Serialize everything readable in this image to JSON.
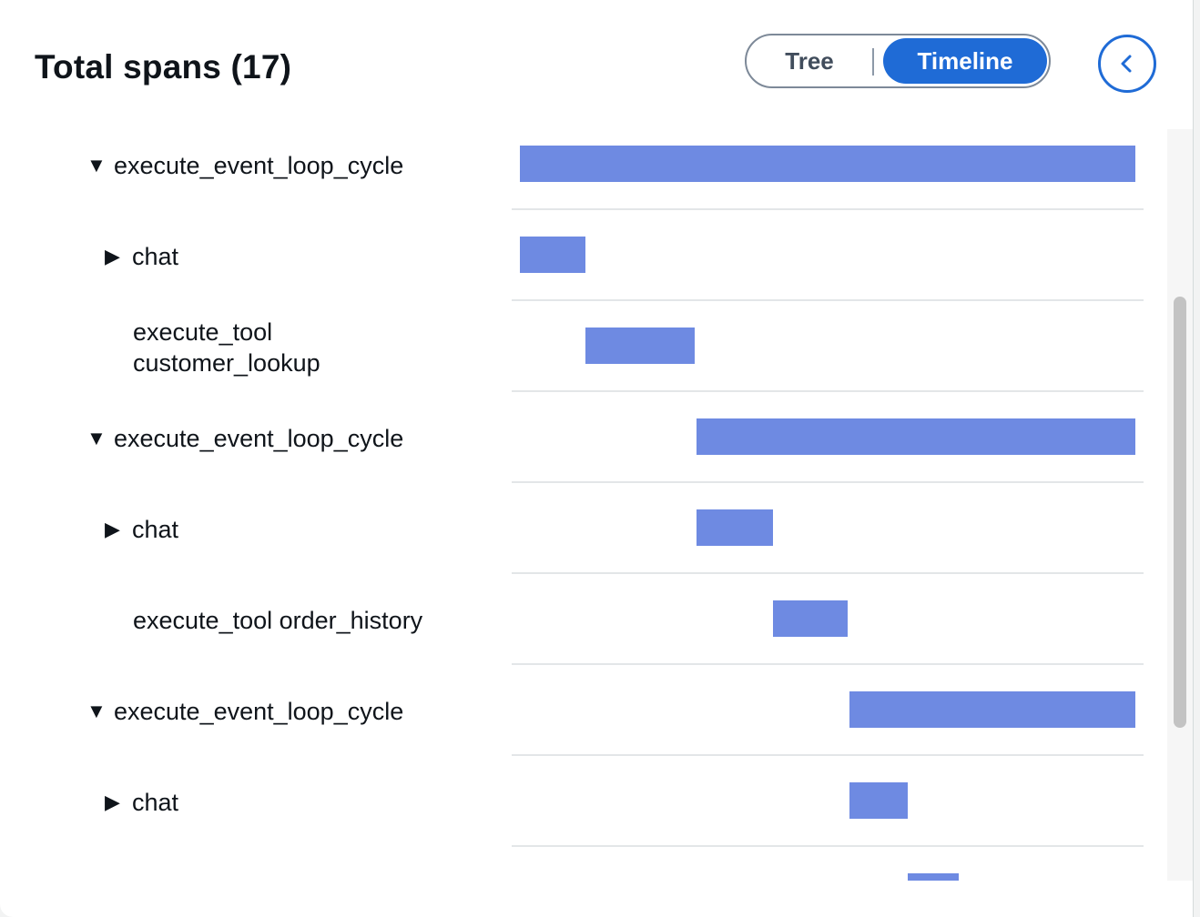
{
  "header": {
    "title": "Total spans (17)",
    "view_toggle": {
      "tree_label": "Tree",
      "timeline_label": "Timeline",
      "selected": "Timeline"
    },
    "collapse_button_icon": "chevron-left-icon"
  },
  "colors": {
    "accent": "#1f6bd6",
    "span_bar": "#6e8ae2"
  },
  "timeline": {
    "spans": [
      {
        "label": "execute_event_loop_cycle",
        "expander": "expanded",
        "depth": 0,
        "start": 0.0,
        "end": 1.0
      },
      {
        "label": "chat",
        "expander": "collapsed",
        "depth": 1,
        "start": 0.0,
        "end": 0.1065
      },
      {
        "label_lines": [
          "execute_tool",
          "customer_lookup"
        ],
        "expander": "none",
        "depth": 1,
        "start": 0.1065,
        "end": 0.284
      },
      {
        "label": "execute_event_loop_cycle",
        "expander": "expanded",
        "depth": 0,
        "start": 0.287,
        "end": 1.0
      },
      {
        "label": "chat",
        "expander": "collapsed",
        "depth": 1,
        "start": 0.287,
        "end": 0.4112
      },
      {
        "label": "execute_tool order_history",
        "expander": "none",
        "depth": 1,
        "start": 0.4112,
        "end": 0.5325
      },
      {
        "label": "execute_event_loop_cycle",
        "expander": "expanded",
        "depth": 0,
        "start": 0.5355,
        "end": 1.0
      },
      {
        "label": "chat",
        "expander": "collapsed",
        "depth": 1,
        "start": 0.5355,
        "end": 0.6302
      },
      {
        "label": "",
        "expander": "none",
        "depth": 1,
        "start": 0.6302,
        "end": 0.713
      }
    ]
  }
}
